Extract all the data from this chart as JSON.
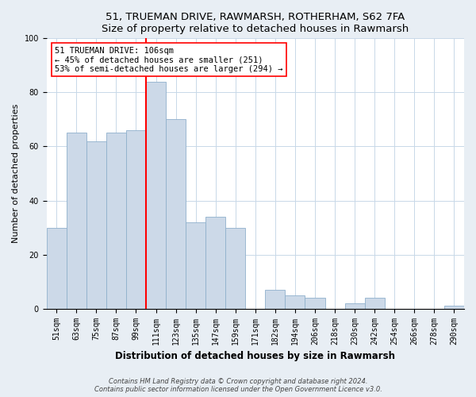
{
  "title1": "51, TRUEMAN DRIVE, RAWMARSH, ROTHERHAM, S62 7FA",
  "title2": "Size of property relative to detached houses in Rawmarsh",
  "xlabel": "Distribution of detached houses by size in Rawmarsh",
  "ylabel": "Number of detached properties",
  "bar_labels": [
    "51sqm",
    "63sqm",
    "75sqm",
    "87sqm",
    "99sqm",
    "111sqm",
    "123sqm",
    "135sqm",
    "147sqm",
    "159sqm",
    "171sqm",
    "182sqm",
    "194sqm",
    "206sqm",
    "218sqm",
    "230sqm",
    "242sqm",
    "254sqm",
    "266sqm",
    "278sqm",
    "290sqm"
  ],
  "bar_values": [
    30,
    65,
    62,
    65,
    66,
    84,
    70,
    32,
    34,
    30,
    0,
    7,
    5,
    4,
    0,
    2,
    4,
    0,
    0,
    0,
    1
  ],
  "bar_color": "#ccd9e8",
  "bar_edge_color": "#8fb0cc",
  "vline_color": "red",
  "vline_x_index": 4.5,
  "annotation_text": "51 TRUEMAN DRIVE: 106sqm\n← 45% of detached houses are smaller (251)\n53% of semi-detached houses are larger (294) →",
  "annotation_box_color": "white",
  "annotation_box_edge": "red",
  "ylim": [
    0,
    100
  ],
  "yticks": [
    0,
    20,
    40,
    60,
    80,
    100
  ],
  "footnote": "Contains HM Land Registry data © Crown copyright and database right 2024.\nContains public sector information licensed under the Open Government Licence v3.0.",
  "bg_color": "#e8eef4",
  "plot_bg_color": "white",
  "grid_color": "#c8d8e8",
  "title1_fontsize": 9.5,
  "title2_fontsize": 9,
  "xlabel_fontsize": 8.5,
  "ylabel_fontsize": 8,
  "tick_fontsize": 7,
  "footnote_fontsize": 6,
  "ann_fontsize": 7.5
}
